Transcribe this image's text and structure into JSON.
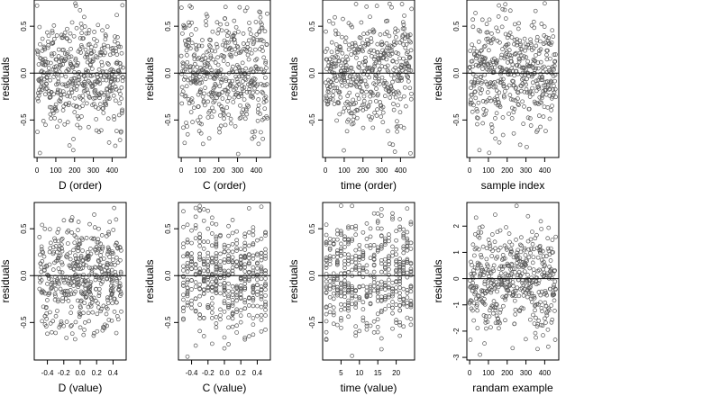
{
  "figure": {
    "points_per_panel": 460,
    "point_color": "#555555",
    "frame_color": "#000000",
    "zero_line_color": "#000000"
  },
  "chart_data": [
    {
      "type": "scatter",
      "xlabel": "D (order)",
      "ylabel": "residuals",
      "xlim": [
        -15,
        475
      ],
      "ylim": [
        -0.9,
        0.78
      ],
      "xticks": [
        0,
        100,
        200,
        300,
        400
      ],
      "xtick_labels": [
        "0",
        "100",
        "200",
        "300",
        "400"
      ],
      "yticks": [
        -0.5,
        0,
        0.5
      ],
      "ytick_labels": [
        "-0.5",
        "0.0",
        "0.5"
      ],
      "hline": 0,
      "x_kind": "index",
      "y_sd": 0.3
    },
    {
      "type": "scatter",
      "xlabel": "C (order)",
      "ylabel": "residuals",
      "xlim": [
        -15,
        475
      ],
      "ylim": [
        -0.9,
        0.78
      ],
      "xticks": [
        0,
        100,
        200,
        300,
        400
      ],
      "xtick_labels": [
        "0",
        "100",
        "200",
        "300",
        "400"
      ],
      "yticks": [
        -0.5,
        0,
        0.5
      ],
      "ytick_labels": [
        "-0.5",
        "0.0",
        "0.5"
      ],
      "hline": 0,
      "x_kind": "index",
      "y_sd": 0.3
    },
    {
      "type": "scatter",
      "xlabel": "time (order)",
      "ylabel": "residuals",
      "xlim": [
        -15,
        475
      ],
      "ylim": [
        -0.9,
        0.78
      ],
      "xticks": [
        0,
        100,
        200,
        300,
        400
      ],
      "xtick_labels": [
        "0",
        "100",
        "200",
        "300",
        "400"
      ],
      "yticks": [
        -0.5,
        0,
        0.5
      ],
      "ytick_labels": [
        "-0.5",
        "0.0",
        "0.5"
      ],
      "hline": 0,
      "x_kind": "index",
      "y_sd": 0.3
    },
    {
      "type": "scatter",
      "xlabel": "sample index",
      "ylabel": "residuals",
      "xlim": [
        -15,
        475
      ],
      "ylim": [
        -0.9,
        0.78
      ],
      "xticks": [
        0,
        100,
        200,
        300,
        400
      ],
      "xtick_labels": [
        "0",
        "100",
        "200",
        "300",
        "400"
      ],
      "yticks": [
        -0.5,
        0,
        0.5
      ],
      "ytick_labels": [
        "-0.5",
        "0.0",
        "0.5"
      ],
      "hline": 0,
      "x_kind": "index",
      "y_sd": 0.3
    },
    {
      "type": "scatter",
      "xlabel": "D (value)",
      "ylabel": "residuals",
      "xlim": [
        -0.56,
        0.56
      ],
      "ylim": [
        -0.9,
        0.78
      ],
      "xticks": [
        -0.4,
        -0.2,
        0,
        0.2,
        0.4
      ],
      "xtick_labels": [
        "-0.4",
        "-0.2",
        "0.0",
        "0.2",
        "0.4"
      ],
      "yticks": [
        -0.5,
        0,
        0.5
      ],
      "ytick_labels": [
        "-0.5",
        "0.0",
        "0.5"
      ],
      "hline": 0,
      "x_kind": "uniform",
      "x_range": [
        -0.5,
        0.5
      ],
      "y_sd": 0.3
    },
    {
      "type": "scatter",
      "xlabel": "C (value)",
      "ylabel": "residuals",
      "xlim": [
        -0.56,
        0.56
      ],
      "ylim": [
        -0.9,
        0.78
      ],
      "xticks": [
        -0.4,
        -0.2,
        0,
        0.2,
        0.4
      ],
      "xtick_labels": [
        "-0.4",
        "-0.2",
        "0.0",
        "0.2",
        "0.4"
      ],
      "yticks": [
        -0.5,
        0,
        0.5
      ],
      "ytick_labels": [
        "-0.5",
        "0.0",
        "0.5"
      ],
      "hline": 0,
      "x_kind": "discrete",
      "x_levels": [
        -0.5,
        -0.45,
        -0.4,
        -0.35,
        -0.3,
        -0.25,
        -0.2,
        -0.15,
        -0.1,
        -0.05,
        0,
        0.05,
        0.1,
        0.15,
        0.2,
        0.25,
        0.3,
        0.35,
        0.4,
        0.45,
        0.5
      ],
      "y_sd": 0.3
    },
    {
      "type": "scatter",
      "xlabel": "time (value)",
      "ylabel": "residuals",
      "xlim": [
        0,
        25
      ],
      "ylim": [
        -0.9,
        0.78
      ],
      "xticks": [
        5,
        10,
        15,
        20
      ],
      "xtick_labels": [
        "5",
        "10",
        "15",
        "20"
      ],
      "yticks": [
        -0.5,
        0,
        0.5
      ],
      "ytick_labels": [
        "-0.5",
        "0.0",
        "0.5"
      ],
      "hline": 0,
      "x_kind": "discrete",
      "x_levels": [
        1,
        2,
        3,
        4,
        5,
        6,
        7,
        8,
        9,
        10,
        11,
        12,
        13,
        14,
        15,
        16,
        17,
        18,
        19,
        20,
        21,
        22,
        23,
        24
      ],
      "y_sd": 0.3
    },
    {
      "type": "scatter",
      "xlabel": "randam example",
      "ylabel": "residuals",
      "xlim": [
        -15,
        475
      ],
      "ylim": [
        -3.1,
        2.9
      ],
      "xticks": [
        0,
        100,
        200,
        300,
        400
      ],
      "xtick_labels": [
        "0",
        "100",
        "200",
        "300",
        "400"
      ],
      "yticks": [
        -3,
        -2,
        -1,
        0,
        1,
        2
      ],
      "ytick_labels": [
        "-3",
        "-2",
        "-1",
        "0",
        "1",
        "2"
      ],
      "hline": 0,
      "x_kind": "index",
      "y_sd": 1.0
    }
  ]
}
